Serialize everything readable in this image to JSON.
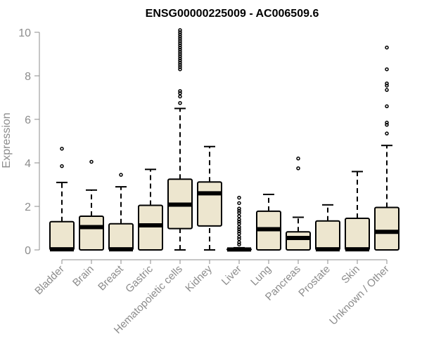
{
  "chart_data": {
    "type": "boxplot",
    "title": "ENSG00000225009 - AC006509.6",
    "xlabel": "",
    "ylabel": "Expression",
    "ylim": [
      0,
      10
    ],
    "yticks": [
      0,
      2,
      4,
      6,
      8,
      10
    ],
    "box_fill": "#ede6cf",
    "box_stroke": "#000000",
    "axis_color": "#8c8c8c",
    "categories": [
      "Bladder",
      "Brain",
      "Breast",
      "Gastric",
      "Hematopoietic cells",
      "Kidney",
      "Liver",
      "Lung",
      "Pancreas",
      "Prostate",
      "Skin",
      "Unknown / Other"
    ],
    "boxes": [
      {
        "name": "Bladder",
        "min": 0,
        "q1": 0,
        "median": 0.03,
        "q3": 1.3,
        "max": 3.1,
        "outliers": [
          3.85,
          4.65
        ]
      },
      {
        "name": "Brain",
        "min": 0,
        "q1": 0,
        "median": 1.05,
        "q3": 1.55,
        "max": 2.75,
        "outliers": [
          4.05
        ]
      },
      {
        "name": "Breast",
        "min": 0,
        "q1": 0,
        "median": 0.03,
        "q3": 1.2,
        "max": 2.9,
        "outliers": [
          3.45
        ]
      },
      {
        "name": "Gastric",
        "min": 0,
        "q1": 0,
        "median": 1.13,
        "q3": 2.05,
        "max": 3.7,
        "outliers": []
      },
      {
        "name": "Hematopoietic cells",
        "min": 0,
        "q1": 0.98,
        "median": 2.08,
        "q3": 3.25,
        "max": 6.5,
        "outliers": [
          6.75,
          7.05,
          7.2,
          7.3,
          8.3,
          8.4,
          8.5,
          8.6,
          8.7,
          8.8,
          8.9,
          9.0,
          9.1,
          9.2,
          9.3,
          9.4,
          9.5,
          9.6,
          9.7,
          9.8,
          9.9,
          10.0,
          10.1
        ]
      },
      {
        "name": "Kidney",
        "min": 0,
        "q1": 1.1,
        "median": 2.6,
        "q3": 3.12,
        "max": 4.75,
        "outliers": []
      },
      {
        "name": "Liver",
        "min": 0,
        "q1": 0,
        "median": 0.02,
        "q3": 0.05,
        "max": 0.1,
        "outliers": [
          0.25,
          0.35,
          0.5,
          0.6,
          0.75,
          0.85,
          0.95,
          1.05,
          1.2,
          1.3,
          1.4,
          1.55,
          1.7,
          1.8,
          1.9,
          2.15,
          2.4
        ]
      },
      {
        "name": "Lung",
        "min": 0,
        "q1": 0,
        "median": 0.95,
        "q3": 1.78,
        "max": 2.55,
        "outliers": []
      },
      {
        "name": "Pancreas",
        "min": 0,
        "q1": 0,
        "median": 0.55,
        "q3": 0.83,
        "max": 1.5,
        "outliers": [
          3.75,
          4.2
        ]
      },
      {
        "name": "Prostate",
        "min": 0,
        "q1": 0,
        "median": 0.03,
        "q3": 1.33,
        "max": 2.07,
        "outliers": []
      },
      {
        "name": "Skin",
        "min": 0,
        "q1": 0,
        "median": 0.03,
        "q3": 1.45,
        "max": 3.6,
        "outliers": []
      },
      {
        "name": "Unknown / Other",
        "min": 0,
        "q1": 0,
        "median": 0.83,
        "q3": 1.95,
        "max": 4.8,
        "outliers": [
          5.35,
          5.75,
          5.85,
          6.6,
          7.35,
          7.55,
          7.65,
          8.3,
          9.3
        ]
      }
    ]
  }
}
